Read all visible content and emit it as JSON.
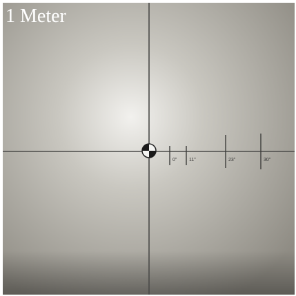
{
  "caption": "1 Meter",
  "scale_labels": [
    "0\"",
    "11\"",
    "23\"",
    "30\""
  ]
}
